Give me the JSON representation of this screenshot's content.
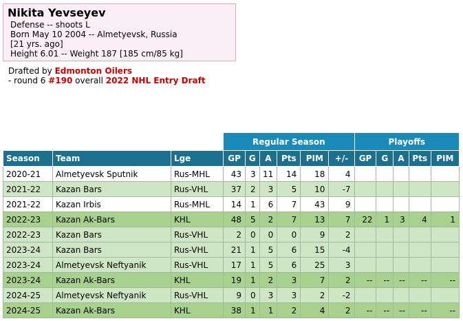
{
  "player": {
    "name": "Nikita Yevseyev",
    "position_line": "Defense -- shoots L",
    "born_line": "Born May 10 2004 -- Almetyevsk, Russia",
    "age_line": "[21 yrs. ago]",
    "size_line": "Height 6.01 -- Weight 187 [185 cm/85 kg]"
  },
  "draft": {
    "prefix": "Drafted by ",
    "team": "Edmonton Oilers",
    "round_text": "- round 6 ",
    "pick": "#190",
    "overall_text": " overall ",
    "draft_name": "2022 NHL Entry Draft"
  },
  "table": {
    "group_regular": "Regular Season",
    "group_playoffs": "Playoffs",
    "headers": {
      "season": "Season",
      "team": "Team",
      "lge": "Lge",
      "gp": "GP",
      "g": "G",
      "a": "A",
      "pts": "Pts",
      "pim": "PIM",
      "pm": "+/-",
      "pgp": "GP",
      "pg": "G",
      "pa": "A",
      "ppts": "Pts",
      "ppim": "PIM"
    },
    "rows": [
      {
        "style": "light",
        "season": "2020-21",
        "team": "Almetyevsk Sputnik",
        "lge": "Rus-MHL",
        "gp": "43",
        "g": "3",
        "a": "11",
        "pts": "14",
        "pim": "18",
        "pm": "4",
        "pgp": "",
        "pg": "",
        "pa": "",
        "ppts": "",
        "ppim": ""
      },
      {
        "style": "green",
        "season": "2021-22",
        "team": "Kazan Bars",
        "lge": "Rus-VHL",
        "gp": "37",
        "g": "2",
        "a": "3",
        "pts": "5",
        "pim": "10",
        "pm": "-7",
        "pgp": "",
        "pg": "",
        "pa": "",
        "ppts": "",
        "ppim": ""
      },
      {
        "style": "light",
        "season": "2021-22",
        "team": "Kazan Irbis",
        "lge": "Rus-MHL",
        "gp": "14",
        "g": "1",
        "a": "6",
        "pts": "7",
        "pim": "43",
        "pm": "9",
        "pgp": "",
        "pg": "",
        "pa": "",
        "ppts": "",
        "ppim": ""
      },
      {
        "style": "dark",
        "season": "2022-23",
        "team": "Kazan Ak-Bars",
        "lge": "KHL",
        "gp": "48",
        "g": "5",
        "a": "2",
        "pts": "7",
        "pim": "13",
        "pm": "7",
        "pgp": "22",
        "pg": "1",
        "pa": "3",
        "ppts": "4",
        "ppim": "1"
      },
      {
        "style": "green",
        "season": "2022-23",
        "team": "Kazan Bars",
        "lge": "Rus-VHL",
        "gp": "2",
        "g": "0",
        "a": "0",
        "pts": "0",
        "pim": "9",
        "pm": "2",
        "pgp": "",
        "pg": "",
        "pa": "",
        "ppts": "",
        "ppim": ""
      },
      {
        "style": "green",
        "season": "2023-24",
        "team": "Kazan Bars",
        "lge": "Rus-VHL",
        "gp": "21",
        "g": "1",
        "a": "5",
        "pts": "6",
        "pim": "15",
        "pm": "-4",
        "pgp": "",
        "pg": "",
        "pa": "",
        "ppts": "",
        "ppim": ""
      },
      {
        "style": "green",
        "season": "2023-24",
        "team": "Almetyevsk Neftyanik",
        "lge": "Rus-VHL",
        "gp": "17",
        "g": "1",
        "a": "5",
        "pts": "6",
        "pim": "25",
        "pm": "3",
        "pgp": "",
        "pg": "",
        "pa": "",
        "ppts": "",
        "ppim": ""
      },
      {
        "style": "dark",
        "season": "2023-24",
        "team": "Kazan Ak-Bars",
        "lge": "KHL",
        "gp": "19",
        "g": "1",
        "a": "2",
        "pts": "3",
        "pim": "7",
        "pm": "2",
        "pgp": "--",
        "pg": "--",
        "pa": "--",
        "ppts": "--",
        "ppim": "--"
      },
      {
        "style": "green",
        "season": "2024-25",
        "team": "Almetyevsk Neftyanik",
        "lge": "Rus-VHL",
        "gp": "9",
        "g": "0",
        "a": "3",
        "pts": "3",
        "pim": "2",
        "pm": "-2",
        "pgp": "",
        "pg": "",
        "pa": "",
        "ppts": "",
        "ppim": ""
      },
      {
        "style": "dark",
        "season": "2024-25",
        "team": "Kazan Ak-Bars",
        "lge": "KHL",
        "gp": "38",
        "g": "1",
        "a": "1",
        "pts": "2",
        "pim": "4",
        "pm": "2",
        "pgp": "--",
        "pg": "--",
        "pa": "--",
        "ppts": "--",
        "ppim": "--"
      }
    ]
  }
}
